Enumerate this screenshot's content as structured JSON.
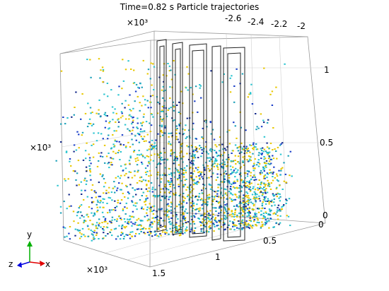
{
  "title": "Time=0.82 s  Particle trajectories",
  "colors": {
    "particle_yellow": "#e8c800",
    "particle_cyan": "#29c4d0",
    "particle_teal": "#1aa0b8",
    "particle_blue": "#1a3ec8",
    "particle_navy": "#142a8a",
    "axis_x": "#e00000",
    "axis_y": "#00b000",
    "axis_z": "#0000e0"
  },
  "chart_data": {
    "type": "scatter",
    "title": "Time=0.82 s  Particle trajectories",
    "time_s": 0.82,
    "axes": {
      "x": {
        "ticks": [
          "-2.6",
          "-2.4",
          "-2.2",
          "-2"
        ],
        "ticks_values": [
          -2.6,
          -2.4,
          -2.2,
          -2.0
        ],
        "range": [
          -2.75,
          -1.95
        ]
      },
      "y": {
        "ticks": [
          "0",
          "0.5",
          "1"
        ],
        "ticks_values": [
          0,
          0.5,
          1
        ],
        "range": [
          0,
          1.1
        ]
      },
      "z": {
        "ticks": [
          "0",
          "0.5",
          "1",
          "1.5"
        ],
        "ticks_values": [
          0,
          0.5,
          1,
          1.5
        ],
        "range": [
          0,
          1.55
        ]
      }
    },
    "exponents": [
      "×10³",
      "×10³",
      "×10³"
    ],
    "triad": {
      "x": "x",
      "y": "y",
      "z": "z"
    },
    "particle_count_drawn": 2600,
    "color_series": [
      "particle_yellow",
      "particle_cyan",
      "particle_teal",
      "particle_blue",
      "particle_navy"
    ],
    "grid": true,
    "legend": "none"
  }
}
